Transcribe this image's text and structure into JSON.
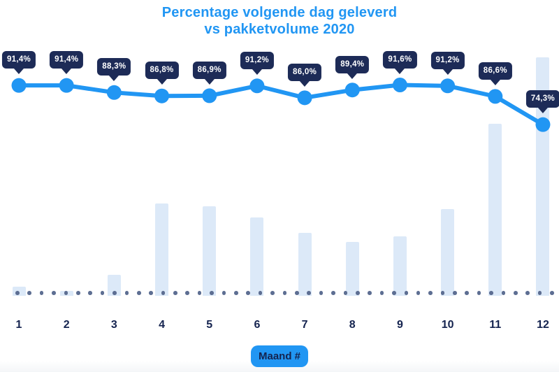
{
  "title": {
    "line1": "Percentage volgende dag geleverd",
    "line2": "vs pakketvolume 2020"
  },
  "chart_data": {
    "type": "combo",
    "title": "Percentage volgende dag geleverd vs pakketvolume 2020",
    "xlabel": "Maand #",
    "categories": [
      "1",
      "2",
      "3",
      "4",
      "5",
      "6",
      "7",
      "8",
      "9",
      "10",
      "11",
      "12"
    ],
    "series": [
      {
        "name": "Percentage volgende dag geleverd",
        "type": "line",
        "unit": "%",
        "values": [
          91.4,
          91.4,
          88.3,
          86.8,
          86.9,
          91.2,
          86.0,
          89.4,
          91.6,
          91.2,
          86.6,
          74.3
        ],
        "point_labels": [
          "91,4%",
          "91,4%",
          "88,3%",
          "86,8%",
          "86,9%",
          "91,2%",
          "86,0%",
          "89,4%",
          "91,6%",
          "91,2%",
          "86,6%",
          "74,3%"
        ]
      },
      {
        "name": "Pakketvolume 2020",
        "type": "bar",
        "unit": "relative volume, max month = 100 (no y-axis shown)",
        "values": [
          3.8,
          2.1,
          8.8,
          38.7,
          37.5,
          32.8,
          26.4,
          22.6,
          24.9,
          36.4,
          72.1,
          100
        ]
      }
    ],
    "yaxis_visible": false,
    "grid": false,
    "legend": false,
    "baseline_style": "dotted"
  },
  "colors": {
    "accent_blue": "#2196f3",
    "bubble_navy": "#1d2b57",
    "bar_light_blue": "#dce9f8",
    "baseline_dot_gray": "#5d6e92",
    "tick_label_navy": "#14234f",
    "badge_text_navy": "#14234f",
    "background": "#ffffff",
    "footer_strip": "#f4f6f8"
  }
}
